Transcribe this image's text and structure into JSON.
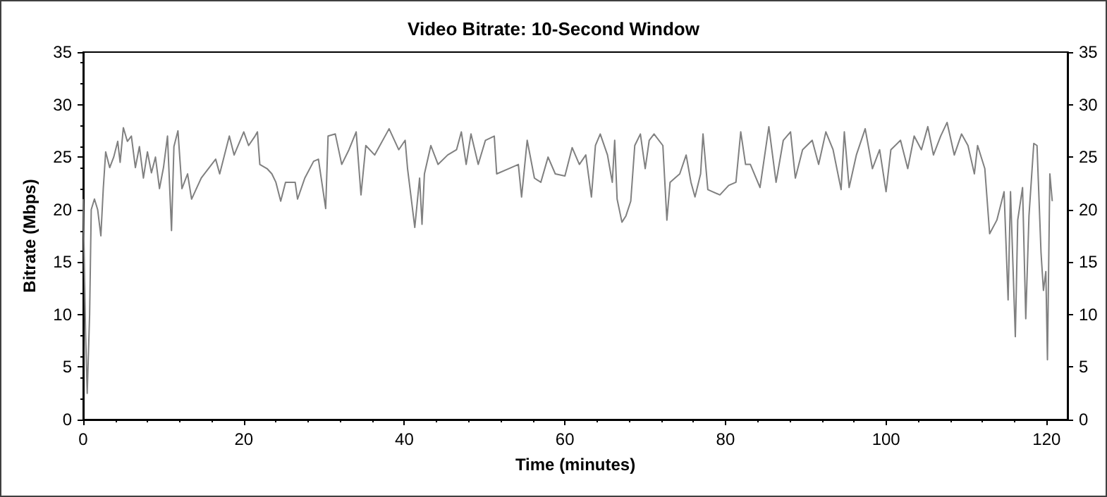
{
  "chart_data": {
    "type": "line",
    "title": "Video Bitrate: 10-Second Window",
    "xlabel": "Time (minutes)",
    "ylabel": "Bitrate (Mbps)",
    "x": [
      0,
      0.3,
      0.5,
      0.8,
      1.0,
      1.4,
      1.8,
      2.2,
      2.5,
      2.8,
      3.3,
      3.8,
      4.3,
      4.6,
      5.0,
      5.5,
      6.0,
      6.5,
      7.0,
      7.5,
      8.0,
      8.5,
      9.0,
      9.5,
      10,
      10.5,
      11,
      11.3,
      11.8,
      12.3,
      13,
      13.5,
      14.7,
      16.5,
      17,
      18.2,
      18.8,
      20,
      20.6,
      21.4,
      21.7,
      22,
      22.9,
      23.5,
      24,
      24.6,
      25.2,
      26.4,
      26.7,
      27.6,
      28.7,
      29.3,
      30.2,
      30.5,
      31.4,
      32.2,
      33.1,
      34,
      34.6,
      35.2,
      36.3,
      38.1,
      39.3,
      40.1,
      40.4,
      41.3,
      41.9,
      42.2,
      42.5,
      43.3,
      44.2,
      45.4,
      46.5,
      47.1,
      47.7,
      48.3,
      49.2,
      50.1,
      51.2,
      51.5,
      53,
      54.2,
      54.6,
      55.3,
      56.2,
      57,
      57.9,
      58.8,
      60,
      60.9,
      61.8,
      62.6,
      63.3,
      63.8,
      64.4,
      65.3,
      65.9,
      66.2,
      66.5,
      67.1,
      67.6,
      68.2,
      68.7,
      69.4,
      70,
      70.5,
      71.1,
      72.2,
      72.7,
      73.1,
      74.3,
      75.1,
      75.7,
      76.2,
      76.9,
      77.2,
      77.8,
      79.3,
      80.4,
      81.3,
      81.9,
      82.5,
      83.1,
      84.3,
      85.4,
      86.3,
      87.2,
      88.1,
      88.7,
      89.6,
      90.8,
      91.6,
      92.5,
      93.4,
      94.4,
      94.8,
      95.4,
      96.3,
      97.4,
      98.3,
      99.2,
      100,
      100.6,
      101.8,
      102.7,
      103.5,
      104.4,
      105.2,
      105.9,
      106.8,
      107.6,
      108.5,
      109.4,
      110.2,
      111,
      111.4,
      112.3,
      112.9,
      113.8,
      114.7,
      115.2,
      115.5,
      116.1,
      116.4,
      117,
      117.4,
      117.8,
      118.4,
      118.8,
      119.3,
      119.6,
      119.9,
      120.1,
      120.4,
      120.7
    ],
    "series": [
      {
        "color": "#808080",
        "values": [
          21,
          8,
          2.5,
          10,
          20,
          21,
          20,
          17.5,
          22,
          25.5,
          24,
          25,
          26.5,
          24.5,
          27.8,
          26.5,
          27,
          24,
          26,
          23,
          25.5,
          23.5,
          25,
          22,
          24,
          27,
          18,
          26,
          27.5,
          22,
          23.4,
          21,
          23,
          24.8,
          23.4,
          27,
          25.2,
          27.4,
          26.1,
          27,
          27.4,
          24.3,
          23.9,
          23.4,
          22.6,
          20.8,
          22.6,
          22.6,
          21,
          23,
          24.6,
          24.8,
          20.1,
          27,
          27.2,
          24.3,
          25.7,
          27.4,
          21.4,
          26.1,
          25.2,
          27.7,
          25.7,
          26.6,
          23.9,
          18.3,
          23,
          18.6,
          23.4,
          26.1,
          24.3,
          25.2,
          25.7,
          27.4,
          24.3,
          27.2,
          24.3,
          26.6,
          27,
          23.4,
          23.9,
          24.3,
          21.2,
          26.6,
          23,
          22.6,
          25,
          23.4,
          23.2,
          25.9,
          24.3,
          25.2,
          21.2,
          26.1,
          27.2,
          25.2,
          22.6,
          26.6,
          21,
          18.8,
          19.4,
          20.8,
          26.1,
          27.2,
          23.9,
          26.6,
          27.2,
          26.1,
          19,
          22.6,
          23.4,
          25.2,
          22.6,
          21.2,
          23.4,
          27.2,
          21.9,
          21.4,
          22.3,
          22.6,
          27.4,
          24.3,
          24.3,
          22.1,
          27.9,
          22.6,
          26.6,
          27.4,
          23,
          25.7,
          26.6,
          24.3,
          27.4,
          25.7,
          21.9,
          27.4,
          22.1,
          25.2,
          27.7,
          23.9,
          25.7,
          21.7,
          25.7,
          26.6,
          23.9,
          27,
          25.7,
          27.9,
          25.2,
          27,
          28.3,
          25.2,
          27.2,
          26.1,
          23.4,
          26.1,
          23.9,
          17.7,
          19,
          21.7,
          11.4,
          21.7,
          7.9,
          19,
          22.1,
          9.6,
          19.4,
          26.3,
          26.1,
          15.9,
          12.3,
          14.1,
          5.7,
          23.4,
          20.8
        ]
      }
    ],
    "xlim": [
      0,
      122.6
    ],
    "xticks": [
      0,
      20,
      40,
      60,
      80,
      100,
      120
    ],
    "ylim": [
      0,
      35
    ],
    "yticks": [
      0,
      5,
      10,
      15,
      20,
      25,
      30,
      35
    ],
    "y2lim": [
      0,
      35
    ],
    "y2ticks": [
      0,
      5,
      10,
      15,
      20,
      25,
      30,
      35
    ],
    "grid": false,
    "marker": "none",
    "line_style": "solid"
  }
}
